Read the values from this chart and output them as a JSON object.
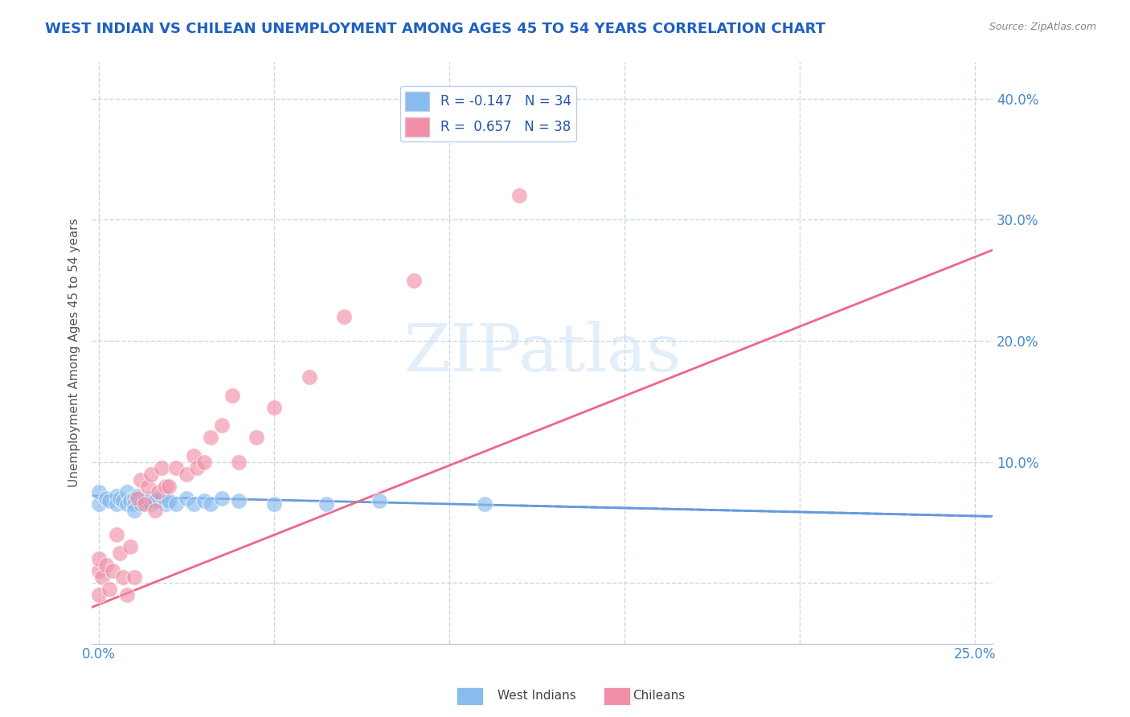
{
  "title": "WEST INDIAN VS CHILEAN UNEMPLOYMENT AMONG AGES 45 TO 54 YEARS CORRELATION CHART",
  "source": "Source: ZipAtlas.com",
  "ylabel": "Unemployment Among Ages 45 to 54 years",
  "xlim": [
    -0.002,
    0.255
  ],
  "ylim": [
    -0.05,
    0.43
  ],
  "xticks": [
    0.0,
    0.05,
    0.1,
    0.15,
    0.2,
    0.25
  ],
  "xtick_labels": [
    "0.0%",
    "",
    "",
    "",
    "",
    "25.0%"
  ],
  "yticks": [
    0.0,
    0.1,
    0.2,
    0.3,
    0.4
  ],
  "ytick_labels": [
    "",
    "10.0%",
    "20.0%",
    "30.0%",
    "40.0%"
  ],
  "background_color": "#ffffff",
  "grid_color": "#c8d8f0",
  "title_color": "#2060c0",
  "axis_label_color": "#4488cc",
  "west_indian_color": "#88bbee",
  "chilean_color": "#f090a8",
  "west_indian_line_color": "#6699dd",
  "chilean_line_color": "#ee6688",
  "west_indians_x": [
    0.0,
    0.0,
    0.002,
    0.003,
    0.005,
    0.005,
    0.006,
    0.007,
    0.008,
    0.008,
    0.009,
    0.01,
    0.01,
    0.01,
    0.011,
    0.012,
    0.013,
    0.015,
    0.015,
    0.016,
    0.018,
    0.019,
    0.02,
    0.022,
    0.025,
    0.027,
    0.03,
    0.032,
    0.035,
    0.04,
    0.05,
    0.065,
    0.08,
    0.11
  ],
  "west_indians_y": [
    0.065,
    0.075,
    0.07,
    0.068,
    0.072,
    0.065,
    0.07,
    0.068,
    0.075,
    0.065,
    0.068,
    0.07,
    0.065,
    0.06,
    0.072,
    0.065,
    0.068,
    0.07,
    0.065,
    0.068,
    0.072,
    0.065,
    0.068,
    0.065,
    0.07,
    0.065,
    0.068,
    0.065,
    0.07,
    0.068,
    0.065,
    0.065,
    0.068,
    0.065
  ],
  "chileans_x": [
    0.0,
    0.0,
    0.0,
    0.001,
    0.002,
    0.003,
    0.004,
    0.005,
    0.006,
    0.007,
    0.008,
    0.009,
    0.01,
    0.011,
    0.012,
    0.013,
    0.014,
    0.015,
    0.016,
    0.017,
    0.018,
    0.019,
    0.02,
    0.022,
    0.025,
    0.027,
    0.028,
    0.03,
    0.032,
    0.035,
    0.038,
    0.04,
    0.045,
    0.05,
    0.06,
    0.07,
    0.09,
    0.12
  ],
  "chileans_y": [
    0.01,
    -0.01,
    0.02,
    0.005,
    0.015,
    -0.005,
    0.01,
    0.04,
    0.025,
    0.005,
    -0.01,
    0.03,
    0.005,
    0.07,
    0.085,
    0.065,
    0.08,
    0.09,
    0.06,
    0.075,
    0.095,
    0.08,
    0.08,
    0.095,
    0.09,
    0.105,
    0.095,
    0.1,
    0.12,
    0.13,
    0.155,
    0.1,
    0.12,
    0.145,
    0.17,
    0.22,
    0.25,
    0.32
  ],
  "wi_R": -0.147,
  "wi_N": 34,
  "ch_R": 0.657,
  "ch_N": 38,
  "watermark_text": "ZIPatlas",
  "legend_R_color": "#2255aa",
  "legend_label_color": "#2255aa"
}
